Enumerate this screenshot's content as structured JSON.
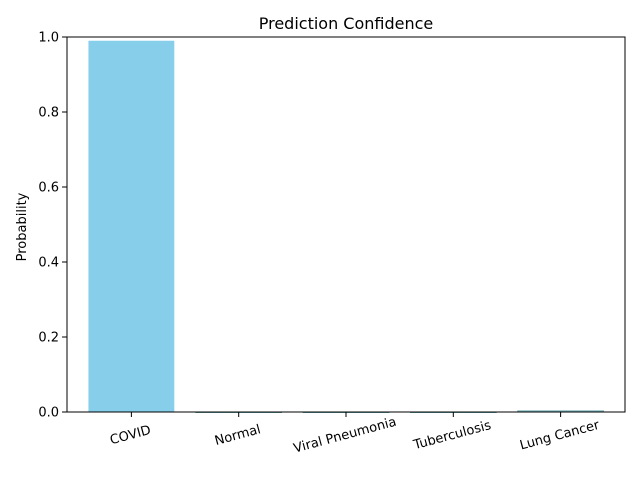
{
  "chart_data": {
    "type": "bar",
    "title": "Prediction Confidence",
    "xlabel": "",
    "ylabel": "Probability",
    "categories": [
      "COVID",
      "Normal",
      "Viral Pneumonia",
      "Tuberculosis",
      "Lung Cancer"
    ],
    "values": [
      0.99,
      0.0,
      0.0,
      0.0,
      0.003
    ],
    "ylim": [
      0,
      1.0
    ],
    "yticks": [
      "0.0",
      "0.2",
      "0.4",
      "0.6",
      "0.8",
      "1.0"
    ],
    "grid": false,
    "legend": "none",
    "colors": {
      "bar_fill": "#87ceeb",
      "bar_edge": "#5f9ea0",
      "axis": "#000000",
      "background": "#ffffff"
    }
  }
}
